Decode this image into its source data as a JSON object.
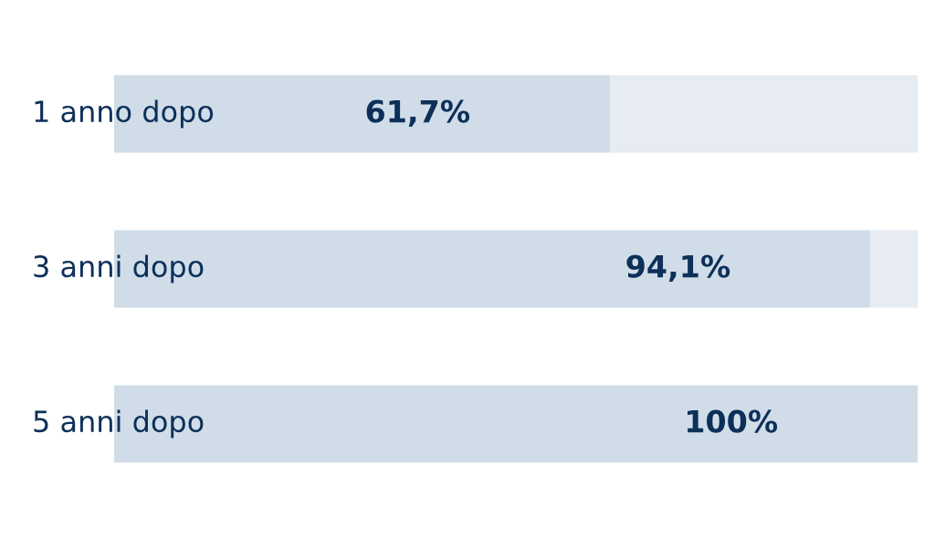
{
  "chart_data": {
    "type": "bar",
    "orientation": "horizontal",
    "stacked": true,
    "categories": [
      "1 anno dopo",
      "3 anni dopo",
      "5 anni dopo"
    ],
    "xlim": [
      0,
      100
    ],
    "tick_labels": "y",
    "legend": false,
    "series": [
      {
        "color": "#d0dde9",
        "values": [
          61.7,
          94.1,
          100
        ],
        "value_labels": [
          "61,7%",
          "94,1%",
          "100%"
        ]
      },
      {
        "color": "#e6ecf1",
        "values": [
          38.3,
          5.9,
          null
        ]
      }
    ]
  }
}
